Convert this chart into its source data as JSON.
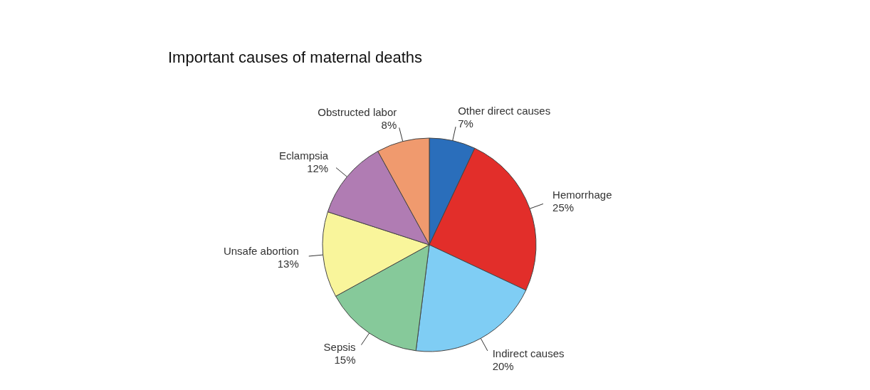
{
  "chart_data": {
    "type": "pie",
    "title": "Important causes of maternal deaths",
    "categories": [
      "Other direct causes",
      "Hemorrhage",
      "Indirect causes",
      "Sepsis",
      "Unsafe abortion",
      "Eclampsia",
      "Obstructed labor"
    ],
    "values": [
      7,
      25,
      20,
      15,
      13,
      12,
      8
    ],
    "value_labels": [
      "7%",
      "25%",
      "20%",
      "15%",
      "13%",
      "12%",
      "8%"
    ],
    "colors": [
      "#2a6ebb",
      "#e22e2a",
      "#7fcdf4",
      "#86c99a",
      "#f9f59b",
      "#b07cb3",
      "#f09a6e"
    ],
    "legend": false
  }
}
